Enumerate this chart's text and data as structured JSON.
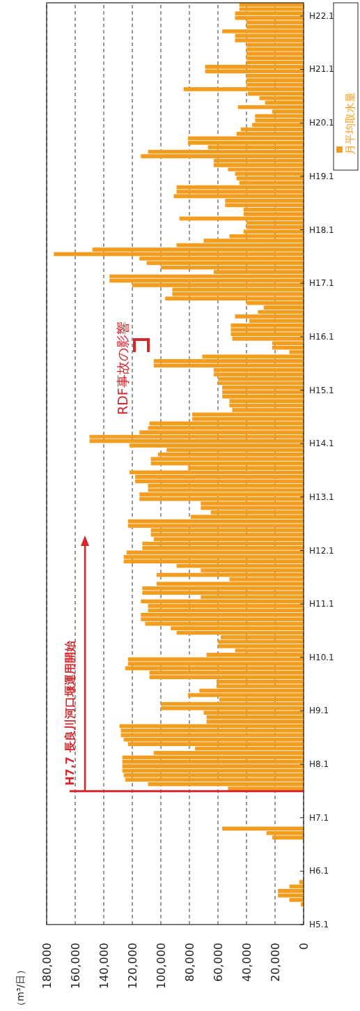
{
  "chart_data": {
    "type": "bar",
    "x": [
      "1993-01",
      "1993-02",
      "1993-03",
      "1993-04",
      "1993-05",
      "1993-06",
      "1993-07",
      "1993-08",
      "1993-09",
      "1993-10",
      "1993-11",
      "1993-12",
      "1994-01",
      "1994-02",
      "1994-03",
      "1994-04",
      "1994-05",
      "1994-06",
      "1994-07",
      "1994-08",
      "1994-09",
      "1994-10",
      "1994-11",
      "1994-12",
      "1995-01",
      "1995-02",
      "1995-03",
      "1995-04",
      "1995-05",
      "1995-06",
      "1995-07",
      "1995-08",
      "1995-09",
      "1995-10",
      "1995-11",
      "1995-12",
      "1996-01",
      "1996-02",
      "1996-03",
      "1996-04",
      "1996-05",
      "1996-06",
      "1996-07",
      "1996-08",
      "1996-09",
      "1996-10",
      "1996-11",
      "1996-12",
      "1997-01",
      "1997-02",
      "1997-03",
      "1997-04",
      "1997-05",
      "1997-06",
      "1997-07",
      "1997-08",
      "1997-09",
      "1997-10",
      "1997-11",
      "1997-12",
      "1998-01",
      "1998-02",
      "1998-03",
      "1998-04",
      "1998-05",
      "1998-06",
      "1998-07",
      "1998-08",
      "1998-09",
      "1998-10",
      "1998-11",
      "1998-12",
      "1999-01",
      "1999-02",
      "1999-03",
      "1999-04",
      "1999-05",
      "1999-06",
      "1999-07",
      "1999-08",
      "1999-09",
      "1999-10",
      "1999-11",
      "1999-12",
      "2000-01",
      "2000-02",
      "2000-03",
      "2000-04",
      "2000-05",
      "2000-06",
      "2000-07",
      "2000-08",
      "2000-09",
      "2000-10",
      "2000-11",
      "2000-12",
      "2001-01",
      "2001-02",
      "2001-03",
      "2001-04",
      "2001-05",
      "2001-06",
      "2001-07",
      "2001-08",
      "2001-09",
      "2001-10",
      "2001-11",
      "2001-12",
      "2002-01",
      "2002-02",
      "2002-03",
      "2002-04",
      "2002-05",
      "2002-06",
      "2002-07",
      "2002-08",
      "2002-09",
      "2002-10",
      "2002-11",
      "2002-12",
      "2003-01",
      "2003-02",
      "2003-03",
      "2003-04",
      "2003-05",
      "2003-06",
      "2003-07",
      "2003-08",
      "2003-09",
      "2003-10",
      "2003-11",
      "2003-12",
      "2004-01",
      "2004-02",
      "2004-03",
      "2004-04",
      "2004-05",
      "2004-06",
      "2004-07",
      "2004-08",
      "2004-09",
      "2004-10",
      "2004-11",
      "2004-12",
      "2005-01",
      "2005-02",
      "2005-03",
      "2005-04",
      "2005-05",
      "2005-06",
      "2005-07",
      "2005-08",
      "2005-09",
      "2005-10",
      "2005-11",
      "2005-12",
      "2006-01",
      "2006-02",
      "2006-03",
      "2006-04",
      "2006-05",
      "2006-06",
      "2006-07",
      "2006-08",
      "2006-09",
      "2006-10",
      "2006-11",
      "2006-12",
      "2007-01",
      "2007-02",
      "2007-03",
      "2007-04",
      "2007-05",
      "2007-06",
      "2007-07",
      "2007-08",
      "2007-09",
      "2007-10",
      "2007-11",
      "2007-12",
      "2008-01",
      "2008-02",
      "2008-03",
      "2008-04",
      "2008-05",
      "2008-06",
      "2008-07",
      "2008-08",
      "2008-09",
      "2008-10",
      "2008-11",
      "2008-12",
      "2009-01",
      "2009-02",
      "2009-03",
      "2009-04",
      "2009-05",
      "2009-06",
      "2009-07",
      "2009-08",
      "2009-09",
      "2009-10",
      "2009-11",
      "2009-12",
      "2010-01",
      "2010-02",
      "2010-03"
    ],
    "series": [
      {
        "name": "月平均取水量",
        "color": "#f39c1e",
        "values": [
          0,
          0,
          0,
          0,
          2000,
          10000,
          18000,
          18000,
          10000,
          3000,
          0,
          0,
          0,
          0,
          0,
          0,
          0,
          0,
          0,
          22000,
          26000,
          57000,
          0,
          0,
          0,
          0,
          0,
          0,
          0,
          0,
          53000,
          109000,
          125000,
          126000,
          127000,
          127000,
          127000,
          127000,
          105000,
          76000,
          123000,
          126000,
          128000,
          128000,
          129000,
          68000,
          68000,
          70000,
          100000,
          100000,
          59000,
          81000,
          73000,
          61000,
          61000,
          108000,
          108000,
          125000,
          123000,
          123000,
          68000,
          48000,
          60000,
          60000,
          58000,
          89000,
          93000,
          111000,
          114000,
          114000,
          109000,
          109000,
          114000,
          72000,
          113000,
          113000,
          103000,
          52000,
          103000,
          72000,
          89000,
          126000,
          126000,
          124000,
          113000,
          113000,
          105000,
          107000,
          107000,
          123000,
          123000,
          79000,
          65000,
          72000,
          72000,
          115000,
          115000,
          109000,
          109000,
          118000,
          118000,
          122000,
          81000,
          107000,
          107000,
          102000,
          96000,
          122000,
          150000,
          150000,
          115000,
          109000,
          108000,
          78000,
          78000,
          50000,
          52000,
          52000,
          57000,
          57000,
          57000,
          60000,
          60000,
          63000,
          63000,
          105000,
          105000,
          71000,
          10000,
          22000,
          22000,
          50000,
          51000,
          51000,
          51000,
          38000,
          48000,
          32000,
          28000,
          40000,
          97000,
          92000,
          92000,
          120000,
          136000,
          136000,
          63000,
          100000,
          110000,
          115000,
          175000,
          148000,
          89000,
          70000,
          52000,
          42000,
          40000,
          40000,
          87000,
          42000,
          42000,
          55000,
          55000,
          91000,
          89000,
          89000,
          45000,
          47000,
          48000,
          53000,
          63000,
          63000,
          114000,
          109000,
          67000,
          81000,
          81000,
          47000,
          44000,
          36000,
          34000,
          34000,
          22000,
          46000,
          27000,
          31000,
          39000,
          84000,
          40000,
          40000,
          40000,
          69000,
          69000,
          40000,
          40000,
          40000,
          40000,
          40000,
          48000,
          48000,
          57000,
          40000,
          40000,
          48000,
          48000,
          45000,
          45000
        ]
      }
    ],
    "orientation": "horizontal",
    "ylim": [
      "1993-01",
      "2010-04"
    ],
    "yticks": [
      {
        "value": "1993-01",
        "label": "H5.1"
      },
      {
        "value": "1994-01",
        "label": "H6.1"
      },
      {
        "value": "1995-01",
        "label": "H7.1"
      },
      {
        "value": "1996-01",
        "label": "H8.1"
      },
      {
        "value": "1997-01",
        "label": "H9.1"
      },
      {
        "value": "1998-01",
        "label": "H10.1"
      },
      {
        "value": "1999-01",
        "label": "H11.1"
      },
      {
        "value": "2000-01",
        "label": "H12.1"
      },
      {
        "value": "2001-01",
        "label": "H13.1"
      },
      {
        "value": "2002-01",
        "label": "H14.1"
      },
      {
        "value": "2003-01",
        "label": "H15.1"
      },
      {
        "value": "2004-01",
        "label": "H16.1"
      },
      {
        "value": "2005-01",
        "label": "H17.1"
      },
      {
        "value": "2006-01",
        "label": "H18.1"
      },
      {
        "value": "2007-01",
        "label": "H19.1"
      },
      {
        "value": "2008-01",
        "label": "H20.1"
      },
      {
        "value": "2009-01",
        "label": "H21.1"
      },
      {
        "value": "2010-01",
        "label": "H22.1"
      }
    ],
    "xlim": [
      180000,
      0
    ],
    "xticks": [
      0,
      {
        "value": 20000,
        "label": "20,000"
      },
      {
        "value": 40000,
        "label": "40,000"
      },
      {
        "value": 60000,
        "label": "60,000"
      },
      {
        "value": 80000,
        "label": "80,000"
      },
      {
        "value": 100000,
        "label": "100,000"
      },
      {
        "value": 120000,
        "label": "120,000"
      },
      {
        "value": 140000,
        "label": "140,000"
      },
      {
        "value": 160000,
        "label": "160,000"
      },
      {
        "value": 180000,
        "label": "180,000"
      }
    ],
    "grid": "x",
    "legend": "top right",
    "ref_lines": [
      {
        "axis": "y",
        "value": "1995-07",
        "label": "H7,7  長良川河口堰運用開始",
        "color": "#d7262c"
      }
    ],
    "annotations": [
      "RDF事故の影響",
      "（m³/日）"
    ]
  }
}
